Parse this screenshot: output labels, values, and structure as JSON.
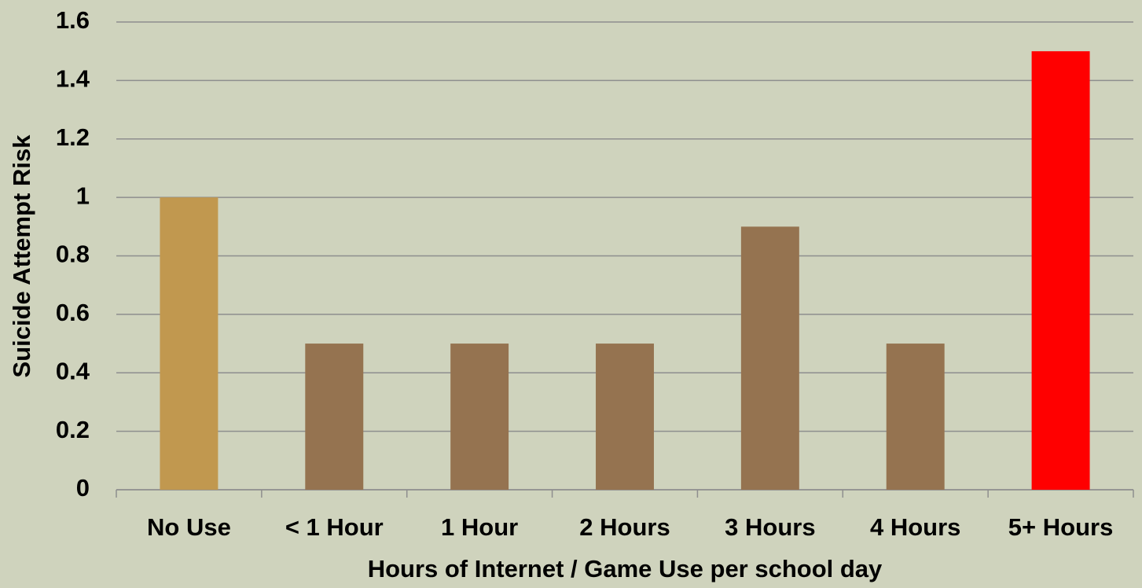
{
  "chart_data": {
    "type": "bar",
    "xlabel": "Hours of Internet / Game Use per school day",
    "ylabel": "Suicide Attempt Risk",
    "categories": [
      "No Use",
      "< 1 Hour",
      "1 Hour",
      "2 Hours",
      "3 Hours",
      "4 Hours",
      "5+ Hours"
    ],
    "values": [
      1,
      0.5,
      0.5,
      0.5,
      0.9,
      0.5,
      1.5
    ],
    "colors": [
      "#c1984f",
      "#957350",
      "#957350",
      "#957350",
      "#957350",
      "#957350",
      "#ff0000"
    ],
    "ylim": [
      0,
      1.6
    ],
    "yticks": [
      0,
      0.2,
      0.4,
      0.6,
      0.8,
      1,
      1.2,
      1.4,
      1.6
    ],
    "grid": true
  }
}
